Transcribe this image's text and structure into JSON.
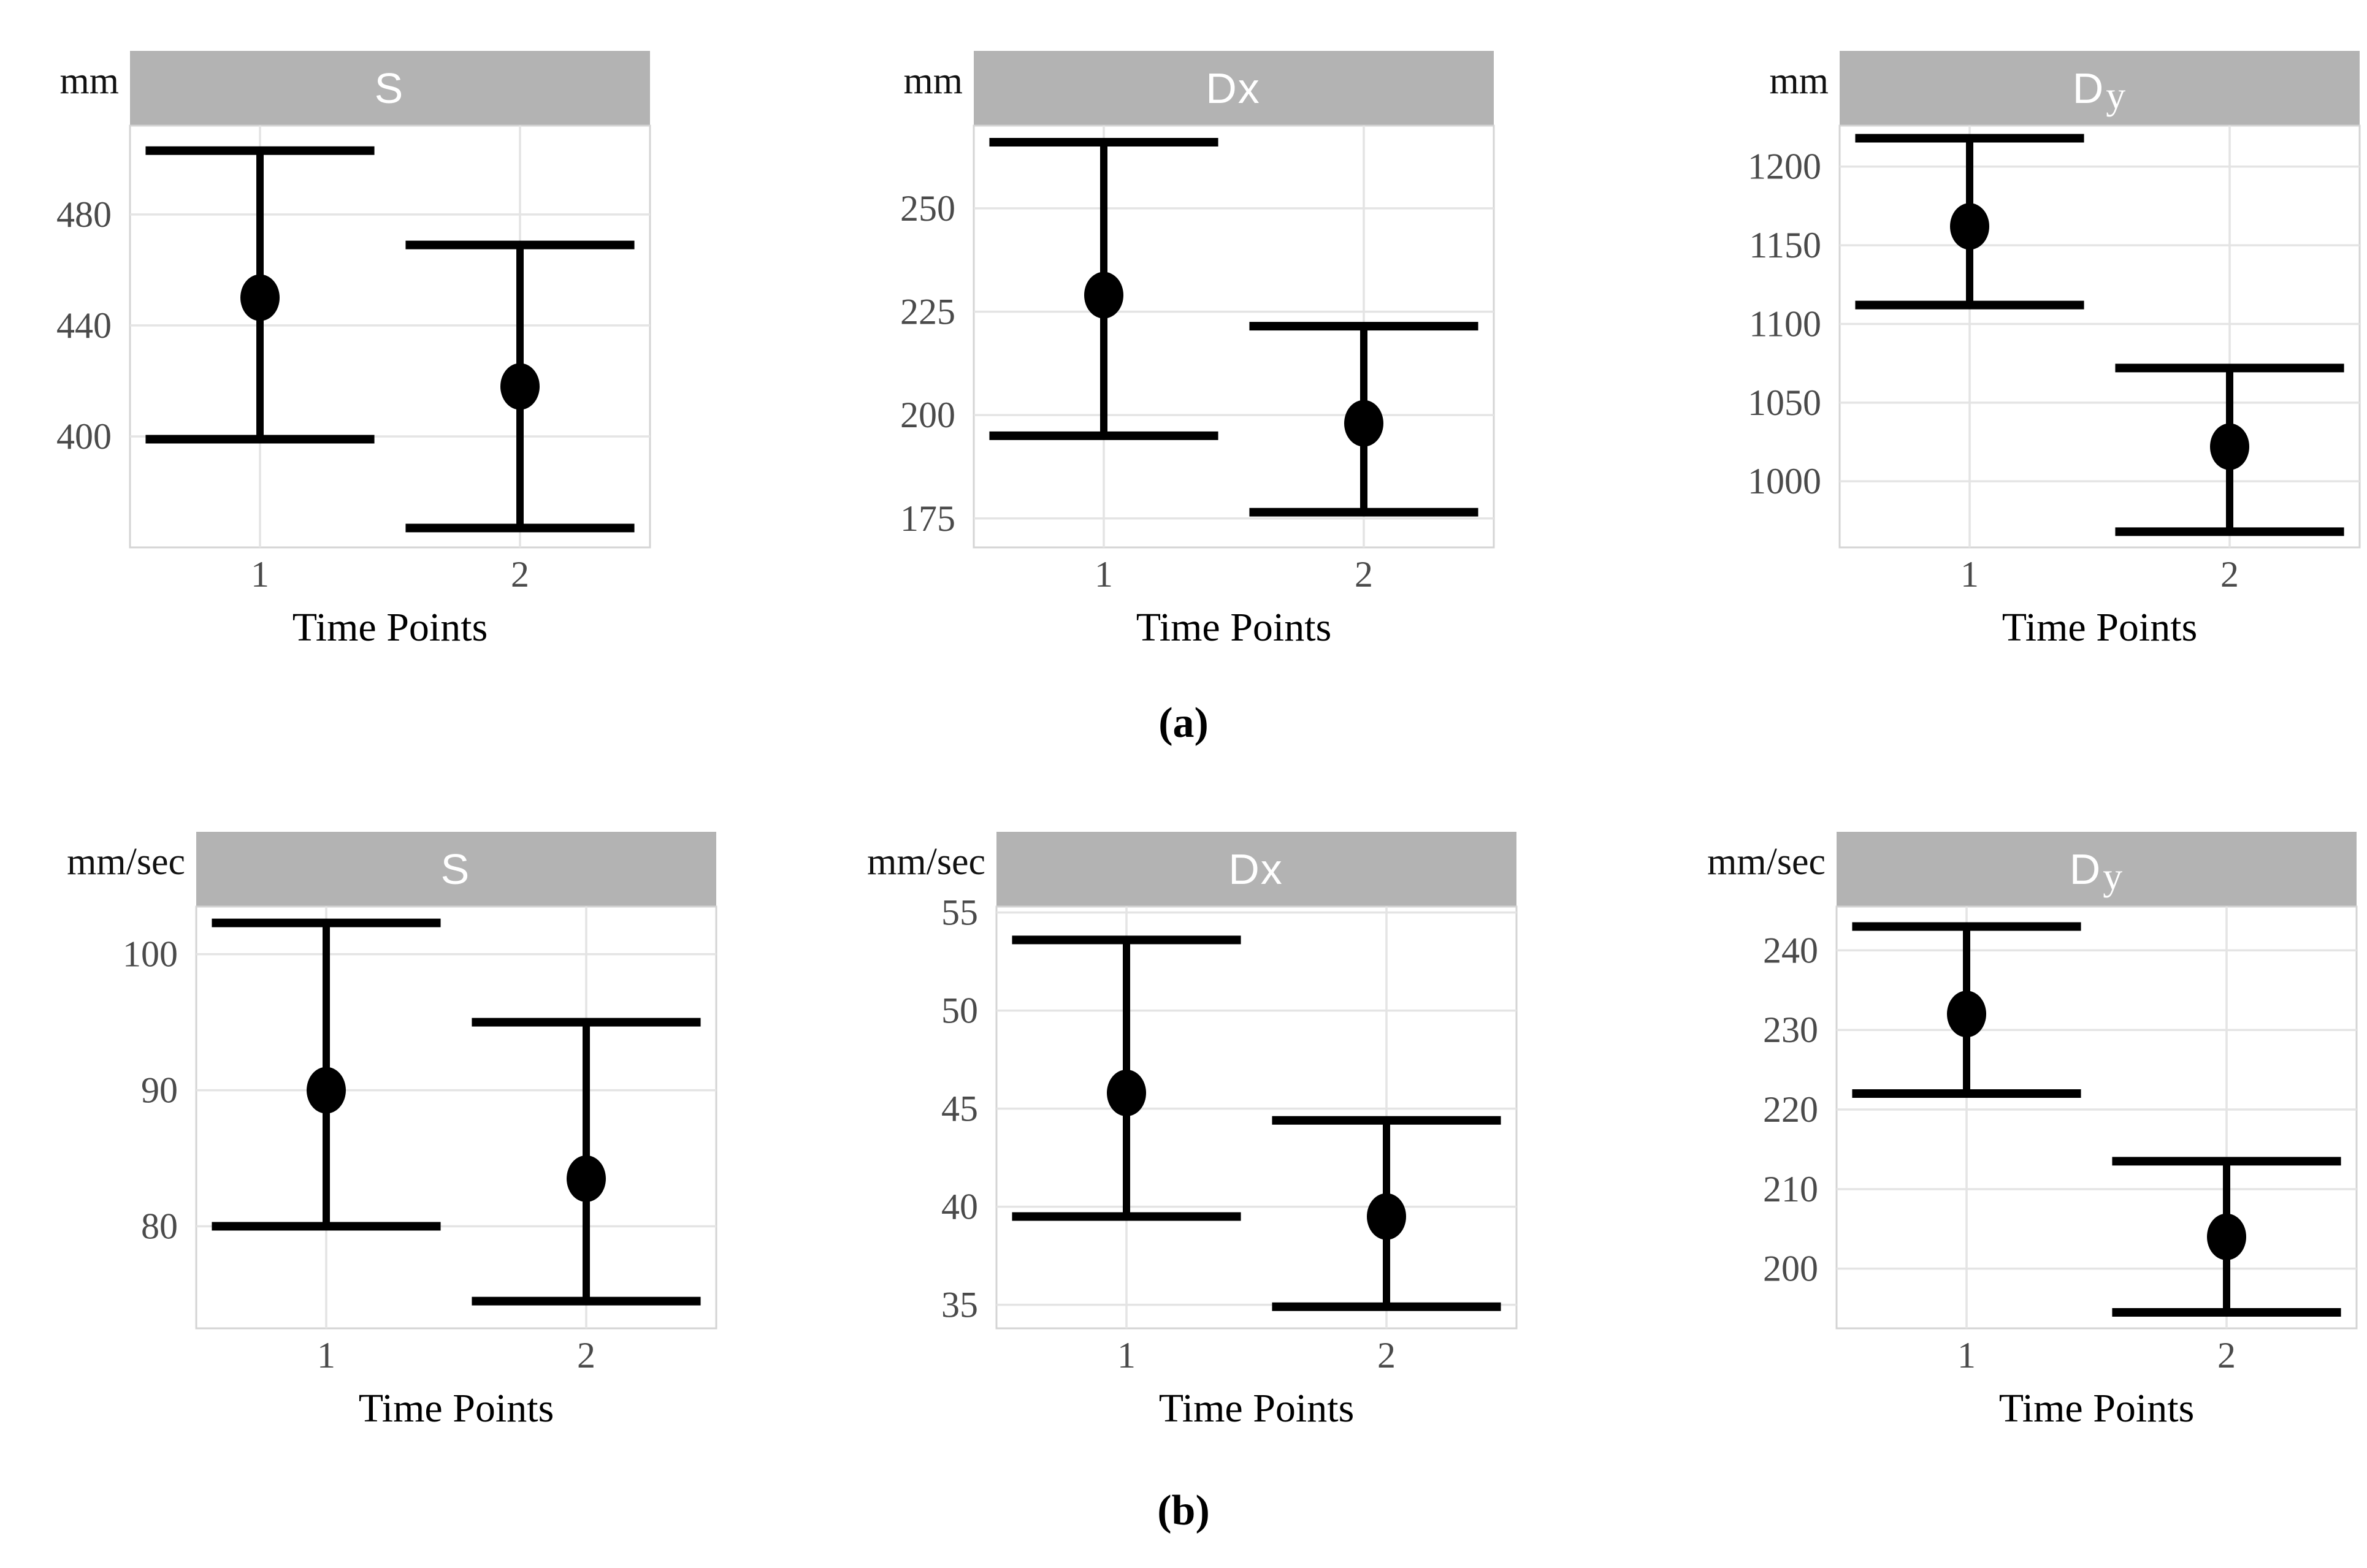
{
  "figure": {
    "caption_a": "(a)",
    "caption_b": "(b)",
    "row_a_unit": "mm",
    "row_b_unit": "mm/sec"
  },
  "style": {
    "strip_bg": "#b3b3b3",
    "strip_text": "#ffffff",
    "panel_bg": "#ffffff",
    "panel_border": "#d4d4d4",
    "gridline": "#e4e4e4",
    "tick_label": "#4a4a4a",
    "errorbar": "#000000"
  },
  "chart_data": [
    {
      "id": "a-s",
      "type": "errorbar",
      "row": "a",
      "unit": "mm",
      "title_main": "S",
      "title_suffix": "",
      "xlabel": "Time Points",
      "xlim": [
        0.5,
        2.5
      ],
      "xticks": [
        1,
        2
      ],
      "xtick_labels": [
        "1",
        "2"
      ],
      "yticks": [
        400,
        440,
        480
      ],
      "ylim": [
        360,
        512
      ],
      "cap_halfwidth": 0.44,
      "points": [
        {
          "x": 1,
          "mean": 450,
          "lower": 399,
          "upper": 503
        },
        {
          "x": 2,
          "mean": 418,
          "lower": 367,
          "upper": 469
        }
      ]
    },
    {
      "id": "a-dx",
      "type": "errorbar",
      "row": "a",
      "unit": "mm",
      "title_main": "Dx",
      "title_suffix": "",
      "xlabel": "Time Points",
      "xlim": [
        0.5,
        2.5
      ],
      "xticks": [
        1,
        2
      ],
      "xtick_labels": [
        "1",
        "2"
      ],
      "yticks": [
        175,
        200,
        225,
        250
      ],
      "ylim": [
        168,
        270
      ],
      "cap_halfwidth": 0.44,
      "points": [
        {
          "x": 1,
          "mean": 229,
          "lower": 195,
          "upper": 266
        },
        {
          "x": 2,
          "mean": 198,
          "lower": 176.5,
          "upper": 221.5
        }
      ]
    },
    {
      "id": "a-dy",
      "type": "errorbar",
      "row": "a",
      "unit": "mm",
      "title_main": "D",
      "title_suffix": "y",
      "xlabel": "Time Points",
      "xlim": [
        0.5,
        2.5
      ],
      "xticks": [
        1,
        2
      ],
      "xtick_labels": [
        "1",
        "2"
      ],
      "yticks": [
        1000,
        1050,
        1100,
        1150,
        1200
      ],
      "ylim": [
        958,
        1226
      ],
      "cap_halfwidth": 0.44,
      "points": [
        {
          "x": 1,
          "mean": 1162,
          "lower": 1112,
          "upper": 1218
        },
        {
          "x": 2,
          "mean": 1022,
          "lower": 968,
          "upper": 1072
        }
      ]
    },
    {
      "id": "b-s",
      "type": "errorbar",
      "row": "b",
      "unit": "mm/sec",
      "title_main": "S",
      "title_suffix": "",
      "xlabel": "Time Points",
      "xlim": [
        0.5,
        2.5
      ],
      "xticks": [
        1,
        2
      ],
      "xtick_labels": [
        "1",
        "2"
      ],
      "yticks": [
        80,
        90,
        100
      ],
      "ylim": [
        72.5,
        103.5
      ],
      "cap_halfwidth": 0.44,
      "points": [
        {
          "x": 1,
          "mean": 90,
          "lower": 80,
          "upper": 102.3
        },
        {
          "x": 2,
          "mean": 83.5,
          "lower": 74.5,
          "upper": 95
        }
      ]
    },
    {
      "id": "b-dx",
      "type": "errorbar",
      "row": "b",
      "unit": "mm/sec",
      "title_main": "Dx",
      "title_suffix": "",
      "xlabel": "Time Points",
      "xlim": [
        0.5,
        2.5
      ],
      "xticks": [
        1,
        2
      ],
      "xtick_labels": [
        "1",
        "2"
      ],
      "yticks": [
        35,
        40,
        45,
        50,
        55
      ],
      "ylim": [
        33.8,
        55.3
      ],
      "cap_halfwidth": 0.44,
      "points": [
        {
          "x": 1,
          "mean": 45.8,
          "lower": 39.5,
          "upper": 53.6
        },
        {
          "x": 2,
          "mean": 39.5,
          "lower": 34.9,
          "upper": 44.4
        }
      ]
    },
    {
      "id": "b-dy",
      "type": "errorbar",
      "row": "b",
      "unit": "mm/sec",
      "title_main": "D",
      "title_suffix": "y",
      "xlabel": "Time Points",
      "xlim": [
        0.5,
        2.5
      ],
      "xticks": [
        1,
        2
      ],
      "xtick_labels": [
        "1",
        "2"
      ],
      "yticks": [
        200,
        210,
        220,
        230,
        240
      ],
      "ylim": [
        192.5,
        245.5
      ],
      "cap_halfwidth": 0.44,
      "points": [
        {
          "x": 1,
          "mean": 232,
          "lower": 222,
          "upper": 243
        },
        {
          "x": 2,
          "mean": 204,
          "lower": 194.5,
          "upper": 213.5
        }
      ]
    }
  ]
}
